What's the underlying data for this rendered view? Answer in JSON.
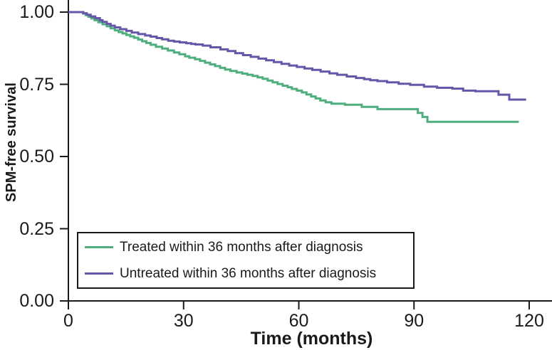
{
  "figure": {
    "background_color": "#ffffff",
    "axis_color": "#1a1a1a",
    "text_color": "#1a1a1a"
  },
  "chart_data": {
    "type": "line",
    "subtype": "kaplan-meier-step",
    "title": "",
    "xlabel": "Time (months)",
    "ylabel": "SPM-free survival",
    "xlim": [
      0,
      126
    ],
    "ylim": [
      0.0,
      1.0
    ],
    "grid": false,
    "legend_position": "lower-left-inside",
    "x_ticks": [
      {
        "label": "0",
        "value": 0
      },
      {
        "label": "30",
        "value": 30
      },
      {
        "label": "60",
        "value": 60
      },
      {
        "label": "90",
        "value": 90
      },
      {
        "label": "120",
        "value": 120
      }
    ],
    "y_ticks": [
      {
        "label": "0.00",
        "value": 0.0
      },
      {
        "label": "0.25",
        "value": 0.25
      },
      {
        "label": "0.50",
        "value": 0.5
      },
      {
        "label": "0.75",
        "value": 0.75
      },
      {
        "label": "1.00",
        "value": 1.0
      }
    ],
    "series": [
      {
        "name": "Treated within 36 months after diagnosis",
        "color": "#4fae7d",
        "line_width": 3,
        "points": [
          [
            0,
            1.0
          ],
          [
            3.2,
            1.0
          ],
          [
            3.8,
            0.995
          ],
          [
            4.5,
            0.99
          ],
          [
            5.2,
            0.984
          ],
          [
            6.0,
            0.978
          ],
          [
            6.8,
            0.972
          ],
          [
            7.8,
            0.965
          ],
          [
            8.9,
            0.958
          ],
          [
            10.0,
            0.951
          ],
          [
            11.0,
            0.944
          ],
          [
            12.1,
            0.937
          ],
          [
            13.1,
            0.931
          ],
          [
            14.1,
            0.926
          ],
          [
            15.1,
            0.921
          ],
          [
            16.1,
            0.916
          ],
          [
            17.1,
            0.911
          ],
          [
            18.2,
            0.905
          ],
          [
            19.2,
            0.899
          ],
          [
            20.3,
            0.893
          ],
          [
            21.4,
            0.887
          ],
          [
            22.8,
            0.88
          ],
          [
            24.4,
            0.874
          ],
          [
            25.9,
            0.867
          ],
          [
            27.5,
            0.86
          ],
          [
            28.9,
            0.854
          ],
          [
            30.4,
            0.847
          ],
          [
            31.5,
            0.842
          ],
          [
            33.0,
            0.837
          ],
          [
            34.3,
            0.831
          ],
          [
            35.6,
            0.825
          ],
          [
            36.9,
            0.819
          ],
          [
            38.2,
            0.813
          ],
          [
            39.5,
            0.807
          ],
          [
            40.8,
            0.801
          ],
          [
            42.2,
            0.796
          ],
          [
            43.8,
            0.791
          ],
          [
            45.3,
            0.787
          ],
          [
            46.6,
            0.783
          ],
          [
            48.0,
            0.779
          ],
          [
            49.3,
            0.774
          ],
          [
            50.6,
            0.769
          ],
          [
            51.9,
            0.763
          ],
          [
            53.2,
            0.757
          ],
          [
            54.5,
            0.751
          ],
          [
            55.8,
            0.745
          ],
          [
            57.1,
            0.74
          ],
          [
            58.2,
            0.734
          ],
          [
            59.5,
            0.728
          ],
          [
            60.8,
            0.722
          ],
          [
            62.0,
            0.715
          ],
          [
            63.2,
            0.708
          ],
          [
            64.4,
            0.701
          ],
          [
            65.6,
            0.694
          ],
          [
            67.0,
            0.688
          ],
          [
            68.5,
            0.683
          ],
          [
            72.0,
            0.679
          ],
          [
            76.4,
            0.672
          ],
          [
            80.5,
            0.664
          ],
          [
            91.0,
            0.651
          ],
          [
            92.2,
            0.637
          ],
          [
            93.5,
            0.62
          ],
          [
            117.3,
            0.62
          ]
        ]
      },
      {
        "name": "Untreated within 36 months after diagnosis",
        "color": "#6456a8",
        "line_width": 3,
        "points": [
          [
            0,
            1.0
          ],
          [
            3.2,
            1.0
          ],
          [
            3.9,
            0.996
          ],
          [
            4.8,
            0.991
          ],
          [
            5.8,
            0.985
          ],
          [
            7.0,
            0.979
          ],
          [
            8.2,
            0.972
          ],
          [
            8.9,
            0.966
          ],
          [
            10.0,
            0.959
          ],
          [
            11.0,
            0.953
          ],
          [
            12.1,
            0.947
          ],
          [
            13.5,
            0.941
          ],
          [
            15.1,
            0.935
          ],
          [
            16.5,
            0.929
          ],
          [
            18.2,
            0.924
          ],
          [
            20.0,
            0.919
          ],
          [
            21.4,
            0.915
          ],
          [
            23.0,
            0.91
          ],
          [
            24.4,
            0.906
          ],
          [
            26.0,
            0.901
          ],
          [
            27.5,
            0.898
          ],
          [
            29.0,
            0.895
          ],
          [
            30.7,
            0.892
          ],
          [
            32.0,
            0.89
          ],
          [
            33.1,
            0.888
          ],
          [
            35.0,
            0.884
          ],
          [
            37.0,
            0.878
          ],
          [
            39.6,
            0.871
          ],
          [
            41.5,
            0.865
          ],
          [
            43.5,
            0.858
          ],
          [
            45.5,
            0.851
          ],
          [
            47.5,
            0.845
          ],
          [
            49.5,
            0.839
          ],
          [
            51.5,
            0.833
          ],
          [
            53.5,
            0.827
          ],
          [
            55.5,
            0.821
          ],
          [
            57.5,
            0.815
          ],
          [
            59.5,
            0.81
          ],
          [
            61.5,
            0.805
          ],
          [
            63.5,
            0.8
          ],
          [
            65.7,
            0.794
          ],
          [
            68.0,
            0.788
          ],
          [
            70.0,
            0.783
          ],
          [
            72.5,
            0.777
          ],
          [
            74.9,
            0.772
          ],
          [
            77.0,
            0.768
          ],
          [
            78.6,
            0.764
          ],
          [
            80.5,
            0.761
          ],
          [
            83.0,
            0.757
          ],
          [
            86.0,
            0.752
          ],
          [
            89.0,
            0.748
          ],
          [
            92.6,
            0.742
          ],
          [
            96.0,
            0.738
          ],
          [
            100.0,
            0.735
          ],
          [
            102.8,
            0.728
          ],
          [
            106.0,
            0.726
          ],
          [
            112.0,
            0.714
          ],
          [
            114.8,
            0.697
          ],
          [
            119.2,
            0.697
          ]
        ]
      }
    ]
  }
}
